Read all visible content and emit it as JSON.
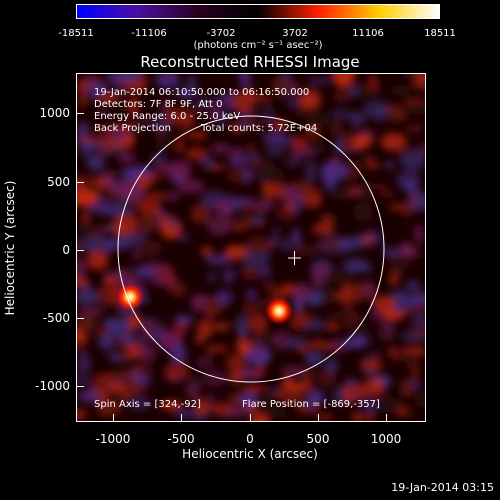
{
  "colorbar": {
    "ticks": [
      "-18511",
      "-11106",
      "-3702",
      "3702",
      "11106",
      "18511"
    ],
    "unit": "(photons cm⁻² s⁻¹ asec⁻²)",
    "colors": [
      "#0000ff",
      "#4a0fa0",
      "#2a0020",
      "#000000",
      "#ff2000",
      "#ffcc00",
      "#ffffff"
    ]
  },
  "plot": {
    "title": "Reconstructed RHESSI Image",
    "annotations": {
      "time_range": "19-Jan-2014 06:10:50.000 to 06:16:50.000",
      "detectors": "Detectors: 7F 8F 9F, Att 0",
      "energy": "Energy Range: 6.0 - 25.0 keV",
      "method": "Back Projection",
      "counts": "Total counts: 5.72E+04",
      "spin_axis": "Spin Axis = [324,-92]",
      "flare_position": "Flare Position = [-869,-357]"
    },
    "xlabel": "Heliocentric X (arcsec)",
    "ylabel": "Heliocentric Y (arcsec)",
    "xticks": [
      "-1000",
      "-500",
      "0",
      "500",
      "1000"
    ],
    "yticks": [
      "1000",
      "500",
      "0",
      "-500",
      "-1000"
    ]
  },
  "footer": {
    "timestamp": "19-Jan-2014 03:15"
  }
}
